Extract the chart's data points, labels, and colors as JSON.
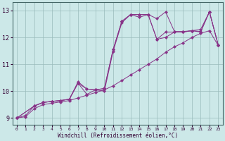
{
  "bg_color": "#cce8e8",
  "grid_color": "#99bbbb",
  "line_color": "#883388",
  "xlabel": "Windchill (Refroidissement éolien,°C)",
  "xlim": [
    -0.5,
    23.5
  ],
  "ylim": [
    8.75,
    13.3
  ],
  "yticks": [
    9,
    10,
    11,
    12,
    13
  ],
  "xticks": [
    0,
    1,
    2,
    3,
    4,
    5,
    6,
    7,
    8,
    9,
    10,
    11,
    12,
    13,
    14,
    15,
    16,
    17,
    18,
    19,
    20,
    21,
    22,
    23
  ],
  "series": [
    {
      "x": [
        0,
        1,
        2,
        3,
        4,
        5,
        6,
        7,
        8,
        9,
        10,
        11,
        12,
        13,
        14,
        15,
        16,
        17,
        18,
        19,
        20,
        21,
        22,
        23
      ],
      "y": [
        9.0,
        9.05,
        9.35,
        9.5,
        9.55,
        9.6,
        9.65,
        9.75,
        9.85,
        9.95,
        10.05,
        10.2,
        10.4,
        10.6,
        10.8,
        11.0,
        11.2,
        11.45,
        11.65,
        11.8,
        12.0,
        12.15,
        12.25,
        11.7
      ]
    },
    {
      "x": [
        0,
        2,
        3,
        4,
        5,
        6,
        7,
        8,
        9,
        10,
        11,
        12,
        13,
        14,
        15,
        16,
        17,
        18,
        19,
        20,
        21,
        22,
        23
      ],
      "y": [
        9.0,
        9.45,
        9.58,
        9.62,
        9.65,
        9.7,
        10.3,
        9.88,
        10.05,
        10.1,
        11.55,
        12.6,
        12.85,
        12.85,
        12.85,
        11.93,
        12.2,
        12.2,
        12.2,
        12.25,
        12.2,
        12.95,
        11.72
      ]
    },
    {
      "x": [
        0,
        1,
        2,
        3,
        4,
        5,
        6,
        7,
        8,
        9,
        10,
        11,
        12,
        13,
        14,
        15,
        16,
        17,
        18,
        19,
        20,
        21,
        22,
        23
      ],
      "y": [
        9.0,
        9.1,
        9.45,
        9.58,
        9.62,
        9.65,
        9.7,
        10.3,
        10.08,
        10.05,
        10.1,
        11.55,
        12.6,
        12.85,
        12.85,
        12.85,
        11.93,
        12.0,
        12.2,
        12.2,
        12.25,
        12.3,
        12.95,
        11.72
      ]
    },
    {
      "x": [
        0,
        2,
        3,
        4,
        5,
        6,
        7,
        8,
        9,
        10,
        11,
        12,
        13,
        14,
        15,
        16,
        17,
        18,
        19,
        20,
        21,
        22,
        23
      ],
      "y": [
        9.0,
        9.45,
        9.58,
        9.62,
        9.65,
        9.7,
        10.35,
        10.08,
        10.05,
        10.0,
        11.48,
        12.55,
        12.85,
        12.75,
        12.85,
        12.7,
        12.95,
        12.22,
        12.22,
        12.25,
        12.22,
        12.95,
        11.72
      ]
    }
  ]
}
